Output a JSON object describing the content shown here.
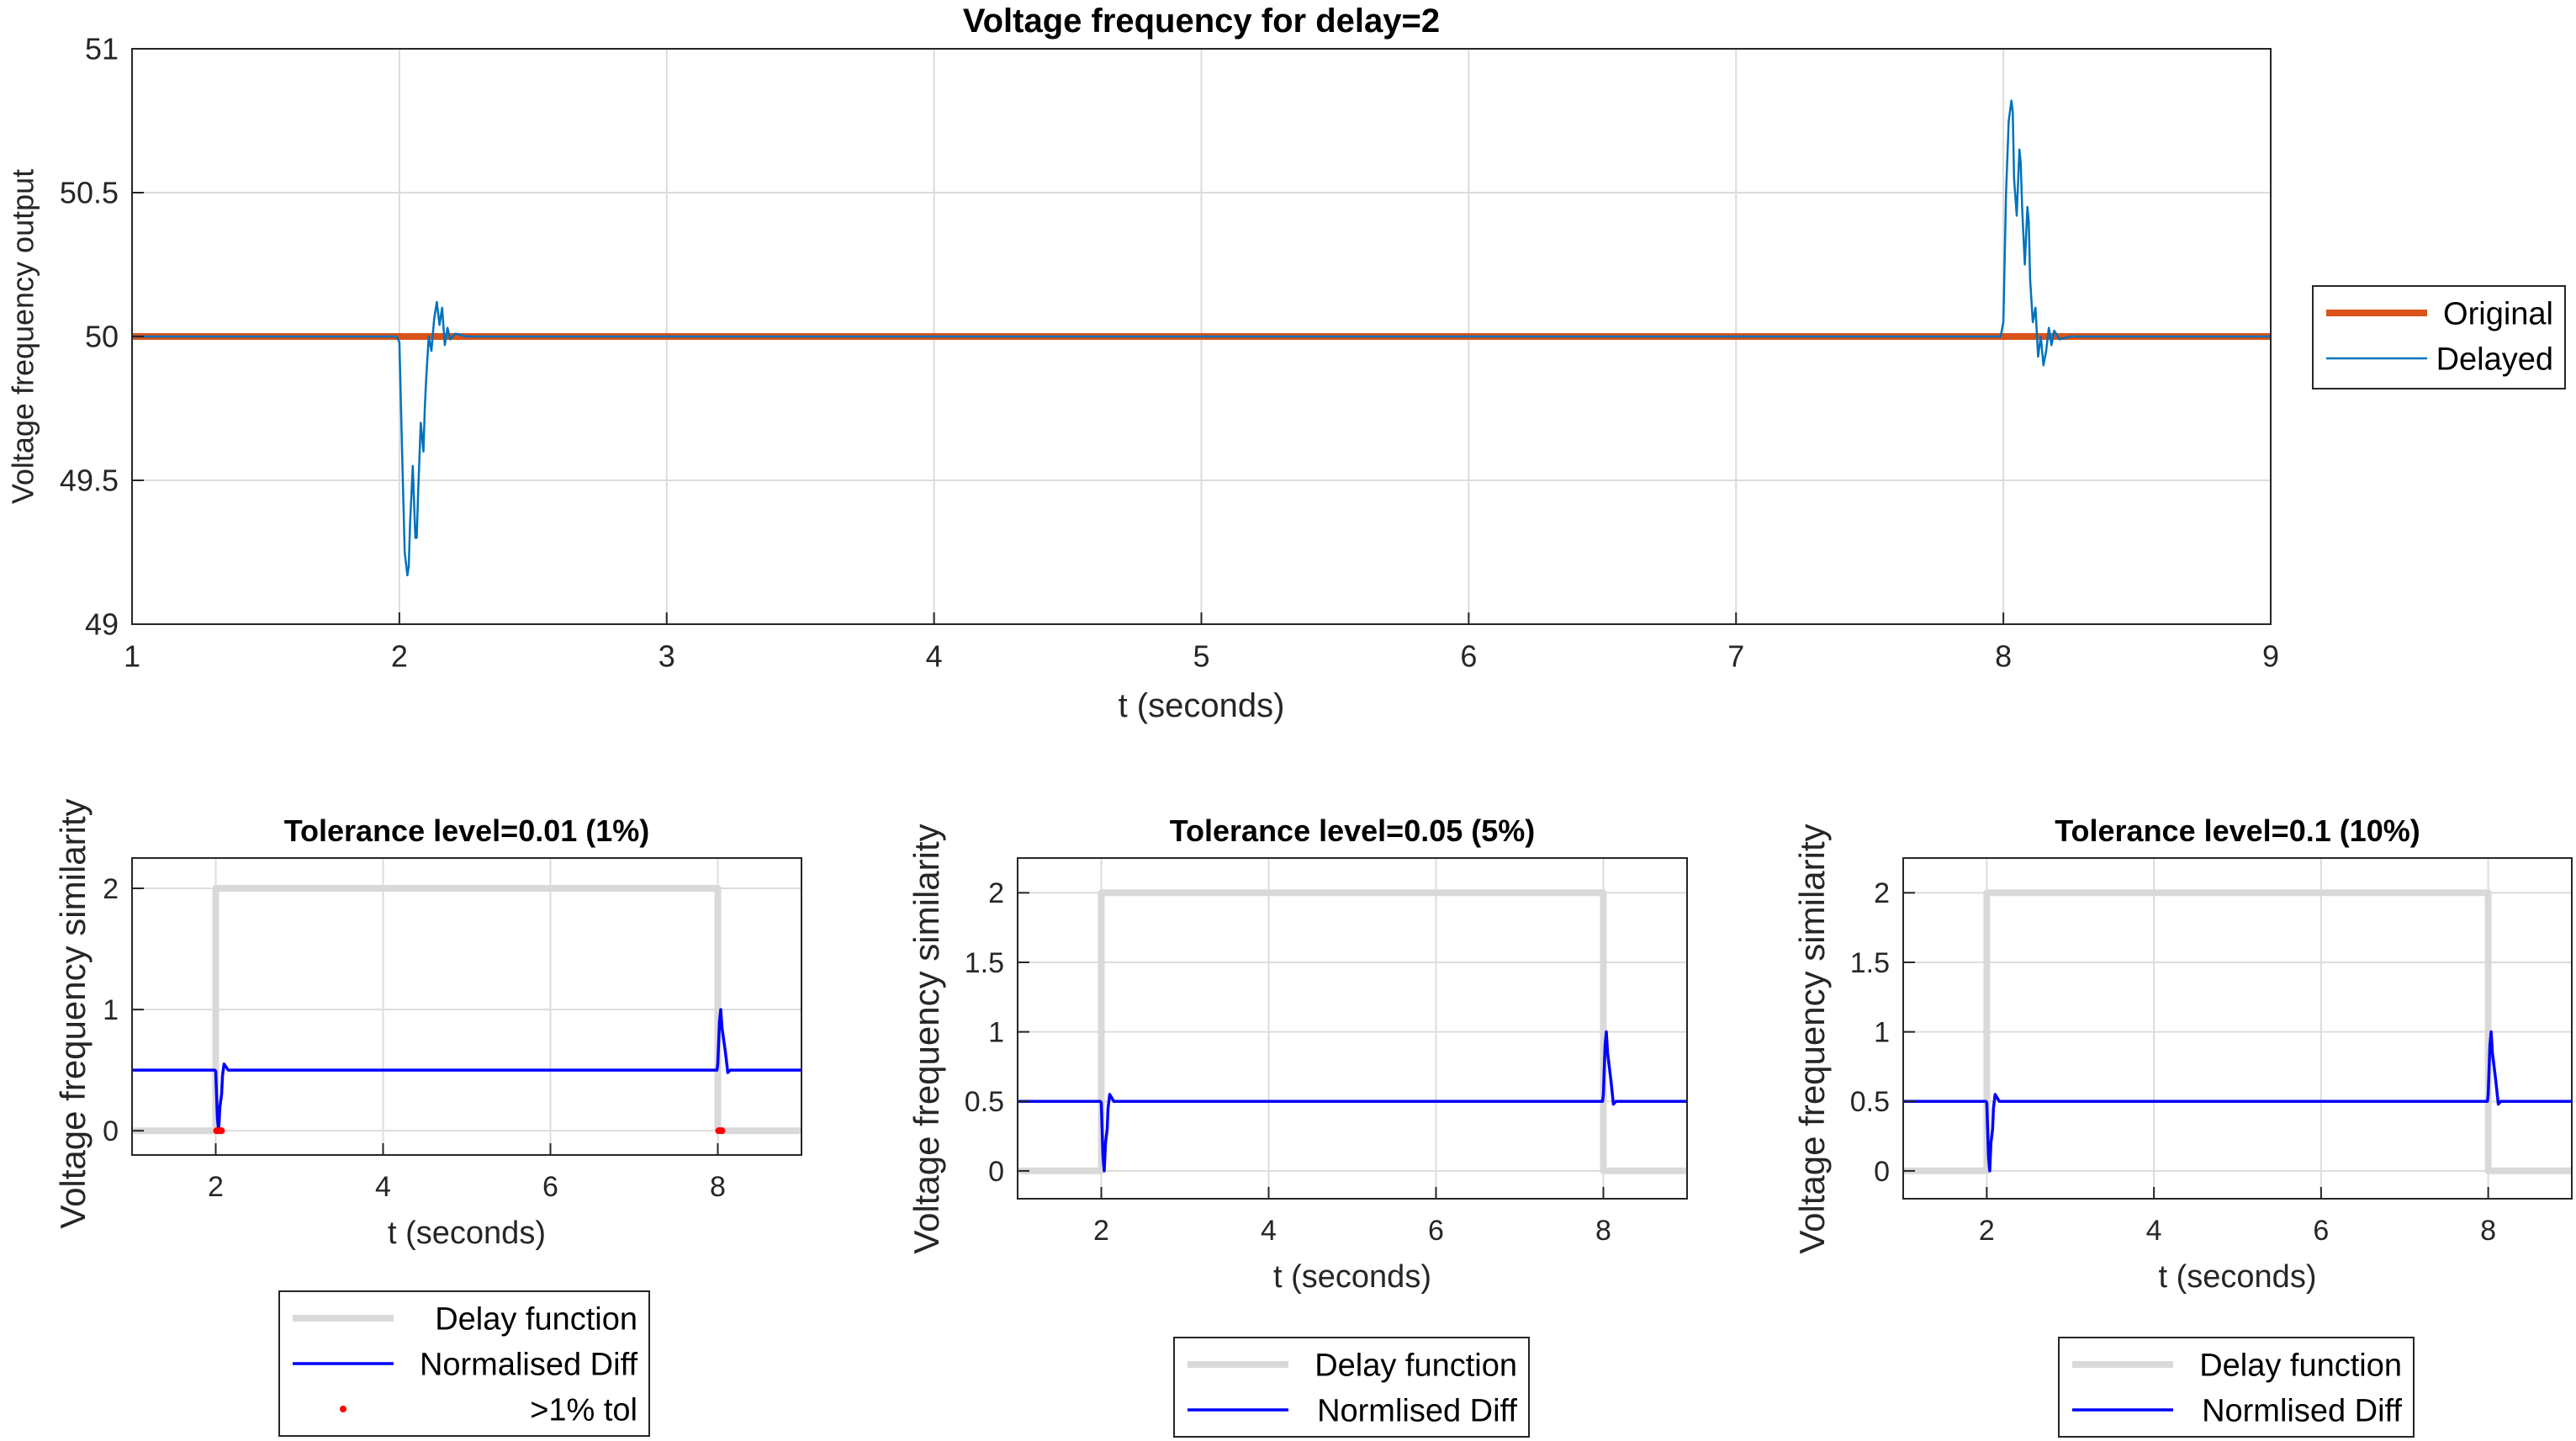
{
  "colors": {
    "original": "#d95319",
    "delayed": "#0072bd",
    "delay_function": "#d9d9d9",
    "normalised_diff": "#0000ff",
    "out_of_tol": "#ff0000"
  },
  "chart_data": [
    {
      "id": "main",
      "type": "line",
      "title": "Voltage frequency for delay=2",
      "xlabel": "t (seconds)",
      "ylabel": "Voltage frequency output",
      "xlim": [
        1,
        9
      ],
      "ylim": [
        49,
        51
      ],
      "xticks": [
        1,
        2,
        3,
        4,
        5,
        6,
        7,
        8,
        9
      ],
      "yticks": [
        49,
        49.5,
        50,
        50.5,
        51
      ],
      "ytick_labels": [
        "49",
        "49.5",
        "50",
        "50.5",
        "51"
      ],
      "grid": true,
      "legend_position": "outside-right",
      "series": [
        {
          "name": "Original",
          "key": "original",
          "x": [
            1,
            9
          ],
          "y": [
            50,
            50
          ]
        },
        {
          "name": "Delayed",
          "key": "delayed",
          "x": [
            1,
            1.99,
            2.0,
            2.01,
            2.02,
            2.03,
            2.035,
            2.04,
            2.05,
            2.06,
            2.065,
            2.07,
            2.08,
            2.09,
            2.095,
            2.1,
            2.11,
            2.12,
            2.13,
            2.14,
            2.15,
            2.16,
            2.17,
            2.18,
            2.19,
            2.21,
            2.25,
            7.99,
            8.0,
            8.01,
            8.02,
            8.03,
            8.035,
            8.04,
            8.05,
            8.06,
            8.065,
            8.07,
            8.08,
            8.09,
            8.095,
            8.1,
            8.11,
            8.12,
            8.13,
            8.14,
            8.15,
            8.16,
            8.17,
            8.18,
            8.19,
            8.21,
            8.25,
            9
          ],
          "y": [
            50,
            50,
            49.98,
            49.6,
            49.25,
            49.17,
            49.2,
            49.35,
            49.55,
            49.3,
            49.3,
            49.45,
            49.7,
            49.6,
            49.75,
            49.85,
            50.0,
            49.95,
            50.06,
            50.12,
            50.04,
            50.1,
            49.97,
            50.03,
            49.99,
            50.01,
            50,
            50,
            50.05,
            50.5,
            50.75,
            50.82,
            50.78,
            50.55,
            50.42,
            50.65,
            50.6,
            50.45,
            50.25,
            50.45,
            50.4,
            50.2,
            50.05,
            50.1,
            49.93,
            50.0,
            49.9,
            49.95,
            50.03,
            49.97,
            50.02,
            49.99,
            50,
            50
          ]
        }
      ]
    },
    {
      "id": "tol1",
      "type": "line",
      "title": "Tolerance level=0.01 (1%)",
      "xlabel": "t (seconds)",
      "ylabel": "Voltage frequency similarity",
      "xlim": [
        1,
        9
      ],
      "ylim": [
        -0.2,
        2.25
      ],
      "xticks": [
        2,
        4,
        6,
        8
      ],
      "yticks": [
        0,
        1,
        2
      ],
      "ytick_labels": [
        "0",
        "1",
        "2"
      ],
      "grid": true,
      "legend_position": "below",
      "series": [
        {
          "name": "Delay function",
          "key": "delay_function",
          "x": [
            1,
            2,
            2,
            8,
            8,
            9
          ],
          "y": [
            0,
            0,
            2,
            2,
            0,
            0
          ]
        },
        {
          "name": "Normalised Diff",
          "key": "normalised_diff",
          "x": [
            1,
            1.99,
            2.0,
            2.02,
            2.035,
            2.05,
            2.07,
            2.08,
            2.1,
            2.12,
            2.15,
            2.2,
            7.99,
            8.0,
            8.02,
            8.035,
            8.05,
            8.07,
            8.09,
            8.12,
            8.15,
            8.2,
            9
          ],
          "y": [
            0.5,
            0.5,
            0.49,
            0.1,
            0.0,
            0.2,
            0.3,
            0.45,
            0.55,
            0.53,
            0.5,
            0.5,
            0.5,
            0.55,
            0.9,
            1.0,
            0.85,
            0.75,
            0.65,
            0.48,
            0.5,
            0.5,
            0.5
          ]
        },
        {
          "name": ">1% tol",
          "key": "out_of_tol",
          "marker": "dot",
          "x": [
            2.01,
            2.03,
            2.05,
            2.07,
            8.01,
            8.03,
            8.05
          ],
          "y": [
            0,
            0,
            0,
            0,
            0,
            0,
            0
          ]
        }
      ]
    },
    {
      "id": "tol5",
      "type": "line",
      "title": "Tolerance level=0.05 (5%)",
      "xlabel": "t (seconds)",
      "ylabel": "Voltage frequency similarity",
      "xlim": [
        1,
        9
      ],
      "ylim": [
        -0.2,
        2.25
      ],
      "xticks": [
        2,
        4,
        6,
        8
      ],
      "yticks": [
        0,
        0.5,
        1,
        1.5,
        2
      ],
      "ytick_labels": [
        "0",
        "0.5",
        "1",
        "1.5",
        "2"
      ],
      "grid": true,
      "legend_position": "below",
      "series": [
        {
          "name": "Delay function",
          "key": "delay_function",
          "x": [
            1,
            2,
            2,
            8,
            8,
            9
          ],
          "y": [
            0,
            0,
            2,
            2,
            0,
            0
          ]
        },
        {
          "name": "Normlised Diff",
          "key": "normalised_diff",
          "x": [
            1,
            1.99,
            2.0,
            2.02,
            2.035,
            2.05,
            2.07,
            2.08,
            2.1,
            2.12,
            2.15,
            2.2,
            7.99,
            8.0,
            8.02,
            8.035,
            8.05,
            8.07,
            8.09,
            8.12,
            8.15,
            8.2,
            9
          ],
          "y": [
            0.5,
            0.5,
            0.49,
            0.1,
            0.0,
            0.2,
            0.3,
            0.45,
            0.55,
            0.53,
            0.5,
            0.5,
            0.5,
            0.55,
            0.9,
            1.0,
            0.85,
            0.75,
            0.65,
            0.48,
            0.5,
            0.5,
            0.5
          ]
        }
      ]
    },
    {
      "id": "tol10",
      "type": "line",
      "title": "Tolerance level=0.1 (10%)",
      "xlabel": "t (seconds)",
      "ylabel": "Voltage frequency similarity",
      "xlim": [
        1,
        9
      ],
      "ylim": [
        -0.2,
        2.25
      ],
      "xticks": [
        2,
        4,
        6,
        8
      ],
      "yticks": [
        0,
        0.5,
        1,
        1.5,
        2
      ],
      "ytick_labels": [
        "0",
        "0.5",
        "1",
        "1.5",
        "2"
      ],
      "grid": true,
      "legend_position": "below",
      "series": [
        {
          "name": "Delay function",
          "key": "delay_function",
          "x": [
            1,
            2,
            2,
            8,
            8,
            9
          ],
          "y": [
            0,
            0,
            2,
            2,
            0,
            0
          ]
        },
        {
          "name": "Normlised Diff",
          "key": "normalised_diff",
          "x": [
            1,
            1.99,
            2.0,
            2.02,
            2.035,
            2.05,
            2.07,
            2.08,
            2.1,
            2.12,
            2.15,
            2.2,
            7.99,
            8.0,
            8.02,
            8.035,
            8.05,
            8.07,
            8.09,
            8.12,
            8.15,
            8.2,
            9
          ],
          "y": [
            0.5,
            0.5,
            0.49,
            0.1,
            0.0,
            0.2,
            0.3,
            0.45,
            0.55,
            0.53,
            0.5,
            0.5,
            0.5,
            0.55,
            0.9,
            1.0,
            0.85,
            0.75,
            0.65,
            0.48,
            0.5,
            0.5,
            0.5
          ]
        }
      ]
    }
  ]
}
